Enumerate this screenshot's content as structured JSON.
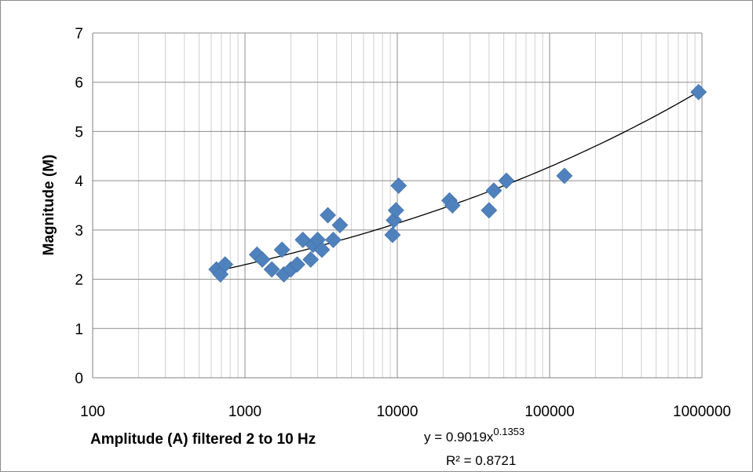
{
  "chart_data": {
    "type": "scatter",
    "xlabel": "Amplitude (A) filtered 2 to 10 Hz",
    "ylabel": "Magnitude (M)",
    "x_scale": "log",
    "xlim": [
      100,
      1000000
    ],
    "ylim": [
      0,
      7
    ],
    "x_tick_labels": [
      "100",
      "1000",
      "10000",
      "100000",
      "1000000"
    ],
    "y_tick_labels": [
      "0",
      "1",
      "2",
      "3",
      "4",
      "5",
      "6",
      "7"
    ],
    "grid": true,
    "legend": "none",
    "marker_color": "#4f81bd",
    "trendline_color": "#000000",
    "series": [
      {
        "points": [
          [
            650,
            2.2
          ],
          [
            690,
            2.1
          ],
          [
            740,
            2.3
          ],
          [
            1200,
            2.5
          ],
          [
            1300,
            2.4
          ],
          [
            1500,
            2.2
          ],
          [
            1750,
            2.6
          ],
          [
            1800,
            2.1
          ],
          [
            2000,
            2.2
          ],
          [
            2200,
            2.3
          ],
          [
            2400,
            2.8
          ],
          [
            2700,
            2.4
          ],
          [
            2800,
            2.7
          ],
          [
            3000,
            2.8
          ],
          [
            3200,
            2.6
          ],
          [
            3500,
            3.3
          ],
          [
            3800,
            2.8
          ],
          [
            4200,
            3.1
          ],
          [
            9300,
            2.9
          ],
          [
            9500,
            3.2
          ],
          [
            9800,
            3.4
          ],
          [
            10200,
            3.9
          ],
          [
            22000,
            3.6
          ],
          [
            23000,
            3.5
          ],
          [
            40000,
            3.4
          ],
          [
            43000,
            3.8
          ],
          [
            52000,
            4.0
          ],
          [
            125000,
            4.1
          ],
          [
            950000,
            5.8
          ]
        ]
      }
    ],
    "trendline": {
      "type": "power",
      "a": 0.9019,
      "b": 0.1353,
      "x_range": [
        700,
        950000
      ]
    },
    "annotations": {
      "equation_base": "y = 0.9019x",
      "equation_exponent": "0.1353",
      "r_squared": "R² = 0.8721"
    }
  }
}
